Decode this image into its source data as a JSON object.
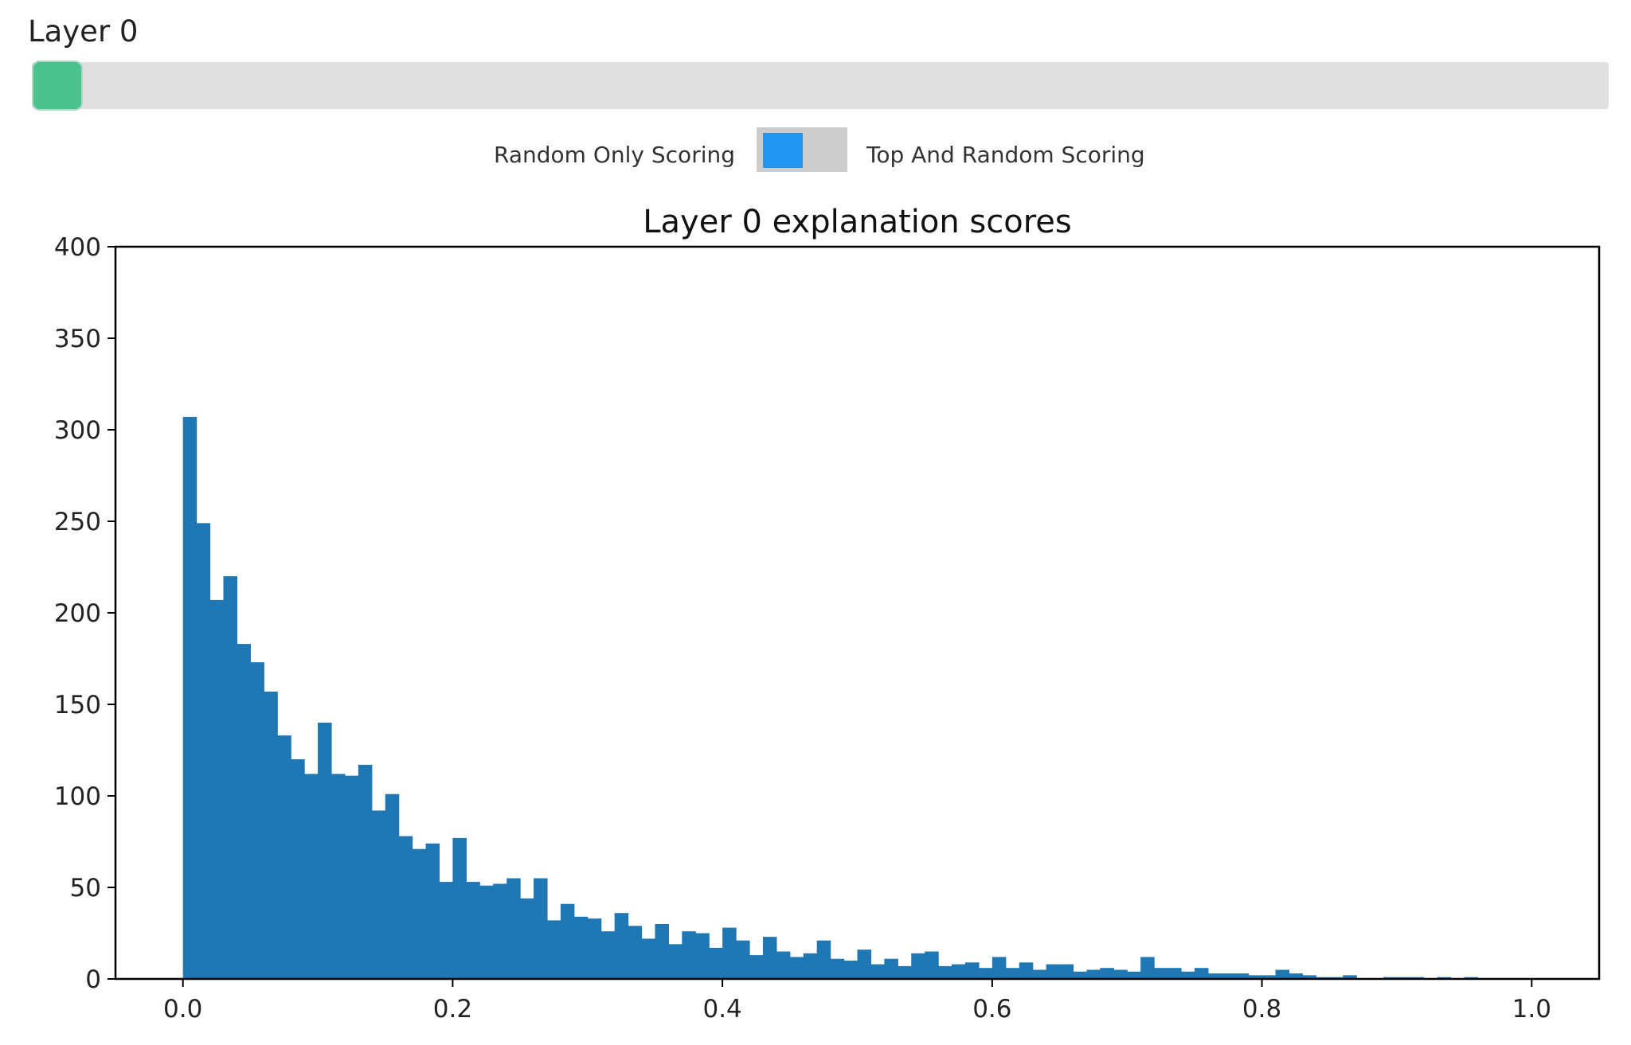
{
  "slider": {
    "label": "Layer 0",
    "value": 0,
    "thumb_color": "#4cc28f"
  },
  "toggle": {
    "left_label": "Random Only Scoring",
    "right_label": "Top And Random Scoring",
    "knob_color": "#2196f3",
    "state": "left"
  },
  "chart_data": {
    "type": "bar",
    "title": "Layer 0 explanation scores",
    "xlabel": "",
    "ylabel": "",
    "xlim": [
      -0.05,
      1.05
    ],
    "ylim": [
      0,
      400
    ],
    "bin_width": 0.01,
    "bin_start": 0.0,
    "xticks": [
      0.0,
      0.2,
      0.4,
      0.6,
      0.8,
      1.0
    ],
    "xtick_labels": [
      "0.0",
      "0.2",
      "0.4",
      "0.6",
      "0.8",
      "1.0"
    ],
    "yticks": [
      0,
      50,
      100,
      150,
      200,
      250,
      300,
      350,
      400
    ],
    "ytick_labels": [
      "0",
      "50",
      "100",
      "150",
      "200",
      "250",
      "300",
      "350",
      "400"
    ],
    "bar_color": "#1f77b4",
    "values": [
      307,
      249,
      207,
      220,
      183,
      173,
      157,
      133,
      120,
      112,
      140,
      112,
      111,
      117,
      92,
      101,
      78,
      71,
      74,
      53,
      77,
      53,
      51,
      52,
      55,
      44,
      55,
      32,
      41,
      34,
      33,
      26,
      36,
      29,
      22,
      30,
      19,
      26,
      25,
      17,
      28,
      21,
      13,
      23,
      15,
      12,
      14,
      21,
      11,
      10,
      16,
      8,
      11,
      7,
      14,
      15,
      7,
      8,
      9,
      6,
      12,
      6,
      9,
      5,
      8,
      8,
      4,
      5,
      6,
      5,
      4,
      12,
      6,
      6,
      4,
      6,
      3,
      3,
      3,
      2,
      2,
      5,
      3,
      2,
      1,
      1,
      2,
      0,
      0,
      1,
      1,
      1,
      0,
      1,
      0,
      1,
      0,
      0,
      0,
      0
    ]
  }
}
